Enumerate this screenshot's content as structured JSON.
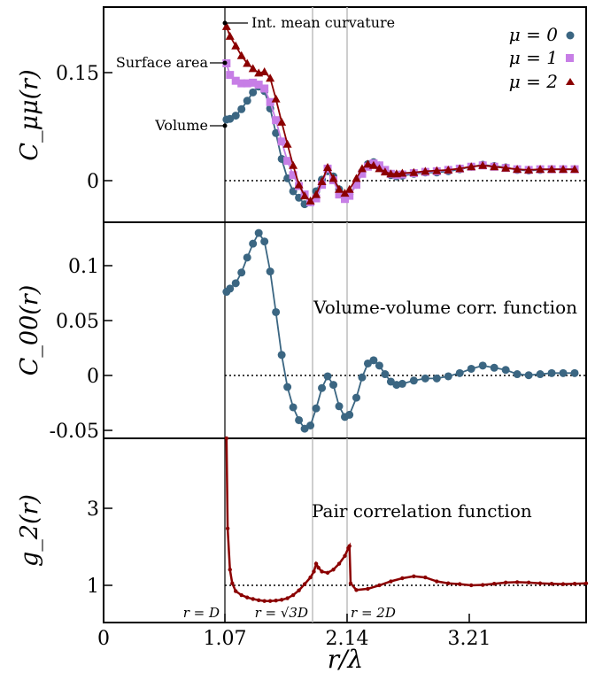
{
  "colors": {
    "mu0": "#3b6682",
    "mu1": "#c77ee6",
    "mu2": "#8b0000",
    "vline": "#bdbdbd"
  },
  "x_axis": {
    "label": "r/λ",
    "ticks": [
      {
        "value": 0,
        "label": "0"
      },
      {
        "value": 1.07,
        "label": "1.07"
      },
      {
        "value": 2.14,
        "label": "2.14"
      },
      {
        "value": 3.21,
        "label": "3.21"
      }
    ]
  },
  "marker_lines": [
    {
      "value": 1.07,
      "label": "r = D"
    },
    {
      "value": 1.853,
      "label": "r = √3D"
    },
    {
      "value": 2.14,
      "label": "r = 2D"
    }
  ],
  "chart_data": [
    {
      "type": "scatter",
      "ylabel": "C_μμ(r)",
      "xlim": [
        0,
        4.2
      ],
      "ylim": [
        -0.083,
        0.25
      ],
      "yticks": [
        {
          "value": 0.15,
          "label": "0.15"
        },
        {
          "value": 0,
          "label": "0"
        }
      ],
      "reference_line": 0,
      "legend": {
        "placement": "top-right",
        "entries": [
          "μ = 0",
          "μ = 1",
          "μ = 2"
        ]
      },
      "annotations": [
        {
          "text": "Int. mean curvature",
          "x": 1.07,
          "y": 0.22
        },
        {
          "text": "Surface area",
          "x": 1.07,
          "y": 0.163
        },
        {
          "text": "Volume",
          "x": 1.07,
          "y": 0.076
        }
      ],
      "series": [
        {
          "name": "μ = 0",
          "marker": "circle",
          "x": [
            1.07,
            1.1,
            1.15,
            1.2,
            1.25,
            1.3,
            1.35,
            1.4,
            1.45,
            1.5,
            1.55,
            1.6,
            1.65,
            1.7,
            1.75,
            1.8,
            1.85,
            1.9,
            1.95,
            2.0,
            2.05,
            2.1,
            2.14,
            2.2,
            2.25,
            2.3,
            2.35,
            2.4,
            2.45,
            2.5,
            2.55,
            2.6,
            2.7,
            2.8,
            2.9,
            3.0,
            3.1,
            3.2,
            3.3,
            3.4,
            3.5,
            3.6,
            3.7,
            3.8,
            3.9,
            4.0,
            4.1
          ],
          "y": [
            0.076,
            0.077,
            0.082,
            0.092,
            0.105,
            0.118,
            0.127,
            0.12,
            0.093,
            0.055,
            0.015,
            -0.015,
            -0.035,
            -0.045,
            -0.055,
            -0.052,
            -0.035,
            -0.017,
            -0.004,
            -0.012,
            -0.032,
            -0.042,
            -0.04,
            -0.025,
            -0.005,
            0.007,
            0.01,
            0.005,
            -0.003,
            -0.01,
            -0.012,
            -0.011,
            -0.008,
            -0.006,
            -0.006,
            -0.004,
            -0.001,
            0.003,
            0.006,
            0.004,
            0.002,
            -0.002,
            -0.003,
            -0.002,
            -0.001,
            -0.001,
            -0.001
          ]
        },
        {
          "name": "μ = 1",
          "marker": "square",
          "x": [
            1.07,
            1.1,
            1.15,
            1.2,
            1.25,
            1.3,
            1.35,
            1.4,
            1.45,
            1.5,
            1.55,
            1.6,
            1.65,
            1.7,
            1.75,
            1.8,
            1.85,
            1.9,
            1.95,
            2.0,
            2.05,
            2.1,
            2.14,
            2.2,
            2.25,
            2.3,
            2.35,
            2.4,
            2.45,
            2.5,
            2.55,
            2.6,
            2.7,
            2.8,
            2.9,
            3.0,
            3.1,
            3.2,
            3.3,
            3.4,
            3.5,
            3.6,
            3.7,
            3.8,
            3.9,
            4.0,
            4.1
          ],
          "y": [
            0.163,
            0.145,
            0.136,
            0.132,
            0.132,
            0.133,
            0.13,
            0.124,
            0.103,
            0.075,
            0.042,
            0.012,
            -0.01,
            -0.027,
            -0.04,
            -0.052,
            -0.046,
            -0.025,
            0.0,
            -0.018,
            -0.04,
            -0.047,
            -0.042,
            -0.025,
            -0.008,
            0.003,
            0.008,
            0.005,
            -0.002,
            -0.008,
            -0.01,
            -0.009,
            -0.007,
            -0.005,
            -0.004,
            -0.002,
            0.0,
            0.003,
            0.005,
            0.003,
            0.001,
            -0.001,
            -0.002,
            -0.001,
            -0.001,
            -0.001,
            -0.001
          ]
        },
        {
          "name": "μ = 2",
          "marker": "triangle",
          "x": [
            1.07,
            1.1,
            1.15,
            1.2,
            1.25,
            1.3,
            1.35,
            1.4,
            1.45,
            1.5,
            1.55,
            1.6,
            1.65,
            1.7,
            1.75,
            1.8,
            1.85,
            1.9,
            1.95,
            2.0,
            2.05,
            2.1,
            2.14,
            2.2,
            2.25,
            2.3,
            2.35,
            2.4,
            2.45,
            2.5,
            2.55,
            2.6,
            2.7,
            2.8,
            2.9,
            3.0,
            3.1,
            3.2,
            3.3,
            3.4,
            3.5,
            3.6,
            3.7,
            3.8,
            3.9,
            4.0,
            4.1
          ],
          "y": [
            0.22,
            0.205,
            0.19,
            0.175,
            0.163,
            0.155,
            0.148,
            0.15,
            0.14,
            0.108,
            0.072,
            0.038,
            0.005,
            -0.025,
            -0.042,
            -0.05,
            -0.04,
            -0.02,
            0.002,
            -0.015,
            -0.032,
            -0.038,
            -0.032,
            -0.015,
            0.0,
            0.007,
            0.005,
            0.0,
            -0.005,
            -0.008,
            -0.008,
            -0.007,
            -0.006,
            -0.004,
            -0.003,
            -0.002,
            0.0,
            0.003,
            0.005,
            0.003,
            0.001,
            -0.001,
            -0.002,
            -0.001,
            -0.001,
            -0.001,
            -0.001
          ]
        }
      ]
    },
    {
      "type": "line",
      "ylabel": "C_00(r)",
      "title": "Volume-volume corr. function",
      "xlim": [
        0,
        4.2
      ],
      "ylim": [
        -0.062,
        0.14
      ],
      "yticks": [
        {
          "value": 0.1,
          "label": "0.1"
        },
        {
          "value": 0.05,
          "label": "0.05"
        },
        {
          "value": 0,
          "label": "0"
        },
        {
          "value": -0.05,
          "label": "-0.05"
        }
      ],
      "reference_line": 0,
      "series": [
        {
          "name": "μ = 0",
          "marker": "circle",
          "x": [
            1.07,
            1.1,
            1.15,
            1.2,
            1.25,
            1.3,
            1.35,
            1.4,
            1.45,
            1.5,
            1.55,
            1.6,
            1.65,
            1.7,
            1.75,
            1.8,
            1.85,
            1.9,
            1.95,
            2.0,
            2.05,
            2.1,
            2.14,
            2.2,
            2.25,
            2.3,
            2.35,
            2.4,
            2.45,
            2.5,
            2.55,
            2.6,
            2.7,
            2.8,
            2.9,
            3.0,
            3.1,
            3.2,
            3.3,
            3.4,
            3.5,
            3.6,
            3.7,
            3.8,
            3.9,
            4.0,
            4.1
          ],
          "y": [
            0.075,
            0.078,
            0.083,
            0.093,
            0.107,
            0.12,
            0.13,
            0.122,
            0.094,
            0.056,
            0.016,
            -0.014,
            -0.033,
            -0.045,
            -0.053,
            -0.05,
            -0.034,
            -0.015,
            -0.004,
            -0.012,
            -0.032,
            -0.042,
            -0.04,
            -0.024,
            -0.005,
            0.008,
            0.011,
            0.006,
            -0.002,
            -0.009,
            -0.012,
            -0.011,
            -0.008,
            -0.006,
            -0.006,
            -0.004,
            -0.001,
            0.003,
            0.006,
            0.004,
            0.002,
            -0.002,
            -0.003,
            -0.002,
            -0.001,
            -0.001,
            -0.001
          ]
        }
      ]
    },
    {
      "type": "line",
      "ylabel": "g_2(r)",
      "title": "Pair correlation function",
      "xlim": [
        0,
        4.2
      ],
      "ylim": [
        0,
        4.7
      ],
      "yticks": [
        {
          "value": 3,
          "label": "3"
        },
        {
          "value": 1,
          "label": "1"
        }
      ],
      "reference_line": 1,
      "series": [
        {
          "name": "g2",
          "marker": "dot",
          "x": [
            1.07,
            1.08,
            1.1,
            1.12,
            1.15,
            1.2,
            1.25,
            1.3,
            1.35,
            1.4,
            1.45,
            1.5,
            1.55,
            1.6,
            1.65,
            1.7,
            1.75,
            1.8,
            1.83,
            1.85,
            1.87,
            1.9,
            1.95,
            2.0,
            2.05,
            2.1,
            2.13,
            2.14,
            2.15,
            2.2,
            2.3,
            2.4,
            2.5,
            2.6,
            2.7,
            2.8,
            2.9,
            3.0,
            3.1,
            3.2,
            3.3,
            3.4,
            3.5,
            3.6,
            3.7,
            3.8,
            3.9,
            4.0,
            4.1,
            4.2
          ],
          "y": [
            4.7,
            2.4,
            1.35,
            1.0,
            0.8,
            0.7,
            0.64,
            0.6,
            0.57,
            0.55,
            0.55,
            0.56,
            0.58,
            0.62,
            0.7,
            0.82,
            0.98,
            1.15,
            1.3,
            1.5,
            1.4,
            1.3,
            1.27,
            1.35,
            1.5,
            1.7,
            1.9,
            1.95,
            1.0,
            0.83,
            0.86,
            0.95,
            1.05,
            1.13,
            1.18,
            1.15,
            1.05,
            1.0,
            0.98,
            0.95,
            0.96,
            0.99,
            1.02,
            1.03,
            1.02,
            1.0,
            0.99,
            0.98,
            0.99,
            1.0
          ]
        }
      ]
    }
  ]
}
